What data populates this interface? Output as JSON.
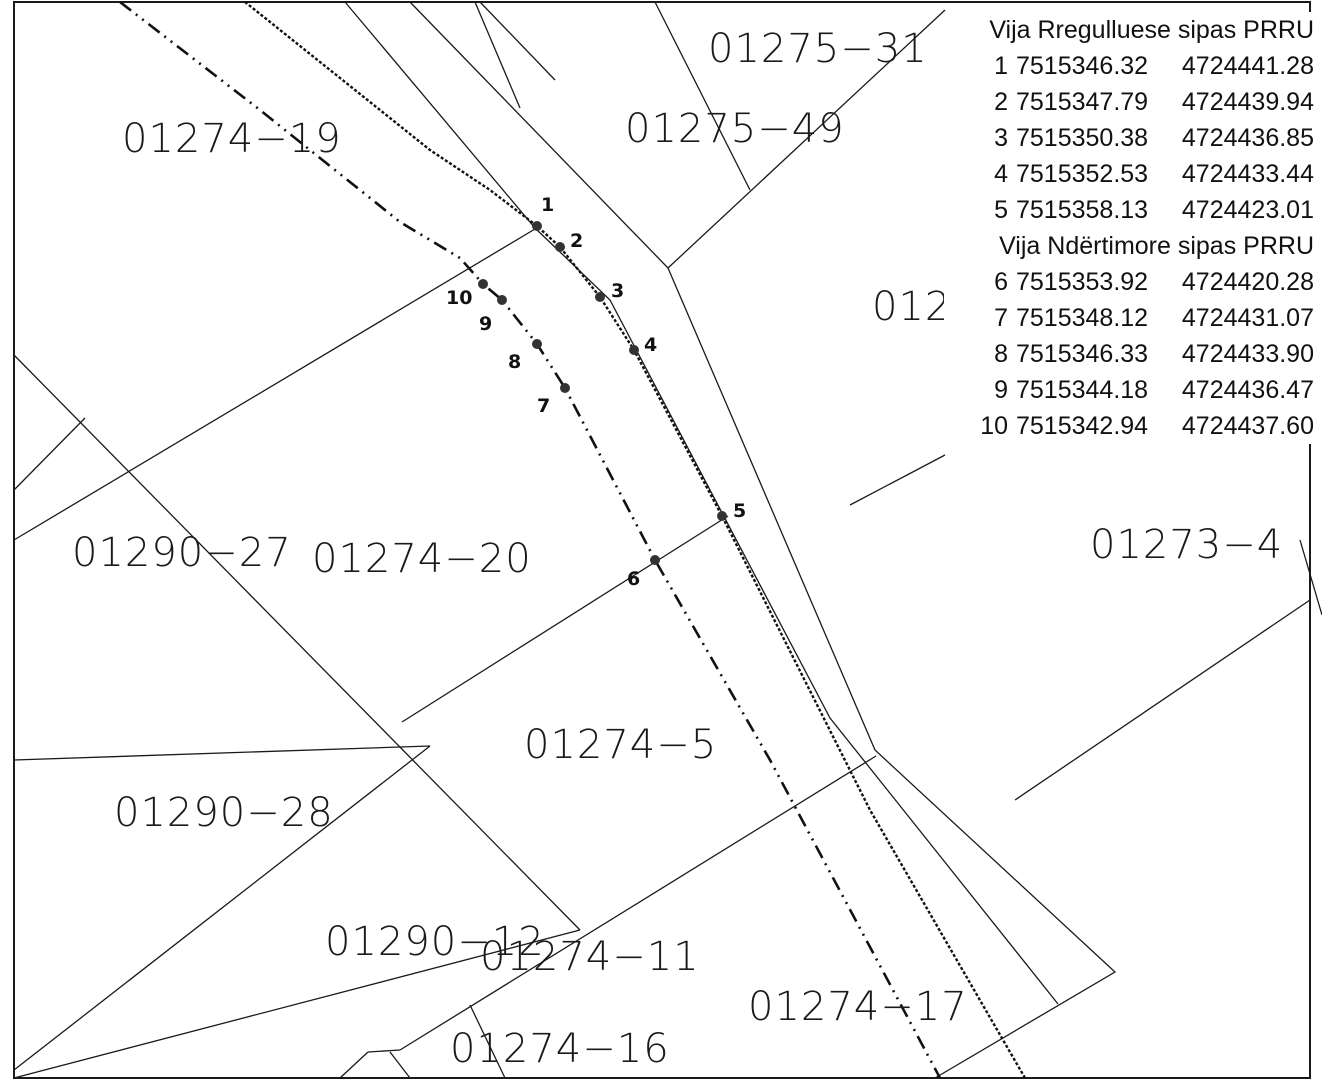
{
  "parcels": [
    {
      "id": "p1",
      "label": "01275−31"
    },
    {
      "id": "p2",
      "label": "01274−19"
    },
    {
      "id": "p3",
      "label": "01275−49"
    },
    {
      "id": "p4",
      "label": "012"
    },
    {
      "id": "p5",
      "label": "01290−27"
    },
    {
      "id": "p6",
      "label": "01274−20"
    },
    {
      "id": "p7",
      "label": "01273−4"
    },
    {
      "id": "p8",
      "label": "01274−5"
    },
    {
      "id": "p9",
      "label": "01290−28"
    },
    {
      "id": "p10",
      "label": "01290−12"
    },
    {
      "id": "p11",
      "label": "01274−11"
    },
    {
      "id": "p12",
      "label": "01274−17"
    },
    {
      "id": "p13",
      "label": "01274−16"
    }
  ],
  "points": [
    {
      "n": "1"
    },
    {
      "n": "2"
    },
    {
      "n": "3"
    },
    {
      "n": "4"
    },
    {
      "n": "5"
    },
    {
      "n": "6"
    },
    {
      "n": "7"
    },
    {
      "n": "8"
    },
    {
      "n": "9"
    },
    {
      "n": "10"
    }
  ],
  "legend": {
    "regulation_title": "Vija Rregulluese sipas PRRU",
    "regulation_rows": [
      {
        "n": "1",
        "x": "7515346.32",
        "y": "4724441.28"
      },
      {
        "n": "2",
        "x": "7515347.79",
        "y": "4724439.94"
      },
      {
        "n": "3",
        "x": "7515350.38",
        "y": "4724436.85"
      },
      {
        "n": "4",
        "x": "7515352.53",
        "y": "4724433.44"
      },
      {
        "n": "5",
        "x": "7515358.13",
        "y": "4724423.01"
      }
    ],
    "construction_title": "Vija Ndërtimore sipas PRRU",
    "construction_rows": [
      {
        "n": "6",
        "x": "7515353.92",
        "y": "4724420.28"
      },
      {
        "n": "7",
        "x": "7515348.12",
        "y": "4724431.07"
      },
      {
        "n": "8",
        "x": "7515346.33",
        "y": "4724433.90"
      },
      {
        "n": "9",
        "x": "7515344.18",
        "y": "4724436.47"
      },
      {
        "n": "10",
        "x": "7515342.94",
        "y": "4724437.60"
      }
    ]
  }
}
